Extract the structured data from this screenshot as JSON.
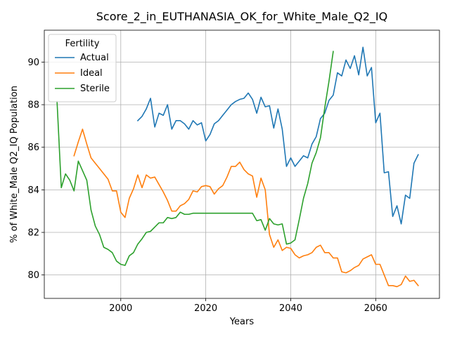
{
  "chart_data": {
    "type": "line",
    "title": "Score_2_in_EUTHANASIA_OK_for_White_Male_Q2_IQ",
    "xlabel": "Years",
    "ylabel": "% of White_Male Q2_IQ Population",
    "xlim": [
      1982,
      2075
    ],
    "ylim": [
      78.9,
      91.5
    ],
    "xticks": [
      2000,
      2020,
      2040,
      2060
    ],
    "yticks": [
      80,
      82,
      84,
      86,
      88,
      90
    ],
    "grid": true,
    "legend": {
      "title": "Fertility",
      "position": "top-left"
    },
    "series": [
      {
        "name": "Actual",
        "color": "#1f77b4",
        "points": [
          [
            2004,
            87.25
          ],
          [
            2005,
            87.45
          ],
          [
            2006,
            87.8
          ],
          [
            2007,
            88.3
          ],
          [
            2008,
            86.95
          ],
          [
            2009,
            87.6
          ],
          [
            2010,
            87.5
          ],
          [
            2011,
            88.0
          ],
          [
            2012,
            86.85
          ],
          [
            2013,
            87.25
          ],
          [
            2014,
            87.25
          ],
          [
            2015,
            87.1
          ],
          [
            2016,
            86.85
          ],
          [
            2017,
            87.25
          ],
          [
            2018,
            87.05
          ],
          [
            2019,
            87.15
          ],
          [
            2020,
            86.3
          ],
          [
            2021,
            86.6
          ],
          [
            2022,
            87.1
          ],
          [
            2023,
            87.25
          ],
          [
            2024,
            87.5
          ],
          [
            2025,
            87.75
          ],
          [
            2026,
            88.0
          ],
          [
            2027,
            88.15
          ],
          [
            2028,
            88.25
          ],
          [
            2029,
            88.3
          ],
          [
            2030,
            88.55
          ],
          [
            2031,
            88.25
          ],
          [
            2032,
            87.6
          ],
          [
            2033,
            88.35
          ],
          [
            2034,
            87.9
          ],
          [
            2035,
            87.95
          ],
          [
            2036,
            86.9
          ],
          [
            2037,
            87.8
          ],
          [
            2038,
            86.85
          ],
          [
            2039,
            85.1
          ],
          [
            2040,
            85.5
          ],
          [
            2041,
            85.1
          ],
          [
            2042,
            85.35
          ],
          [
            2043,
            85.6
          ],
          [
            2044,
            85.5
          ],
          [
            2045,
            86.15
          ],
          [
            2046,
            86.5
          ],
          [
            2047,
            87.35
          ],
          [
            2048,
            87.6
          ],
          [
            2049,
            88.2
          ],
          [
            2050,
            88.45
          ],
          [
            2051,
            89.5
          ],
          [
            2052,
            89.35
          ],
          [
            2053,
            90.1
          ],
          [
            2054,
            89.7
          ],
          [
            2055,
            90.3
          ],
          [
            2056,
            89.4
          ],
          [
            2057,
            90.7
          ],
          [
            2058,
            89.35
          ],
          [
            2059,
            89.75
          ],
          [
            2060,
            87.15
          ],
          [
            2061,
            87.6
          ],
          [
            2062,
            84.8
          ],
          [
            2063,
            84.85
          ],
          [
            2064,
            82.75
          ],
          [
            2065,
            83.25
          ],
          [
            2066,
            82.4
          ],
          [
            2067,
            83.75
          ],
          [
            2068,
            83.6
          ],
          [
            2069,
            85.25
          ],
          [
            2070,
            85.65
          ]
        ]
      },
      {
        "name": "Ideal",
        "color": "#ff7f0e",
        "points": [
          [
            1989,
            85.6
          ],
          [
            1990,
            86.25
          ],
          [
            1991,
            86.85
          ],
          [
            1992,
            86.15
          ],
          [
            1993,
            85.5
          ],
          [
            1994,
            85.25
          ],
          [
            1995,
            85.0
          ],
          [
            1996,
            84.75
          ],
          [
            1997,
            84.5
          ],
          [
            1998,
            83.95
          ],
          [
            1999,
            83.95
          ],
          [
            2000,
            82.95
          ],
          [
            2001,
            82.7
          ],
          [
            2002,
            83.6
          ],
          [
            2003,
            84.05
          ],
          [
            2004,
            84.7
          ],
          [
            2005,
            84.1
          ],
          [
            2006,
            84.7
          ],
          [
            2007,
            84.55
          ],
          [
            2008,
            84.6
          ],
          [
            2009,
            84.25
          ],
          [
            2010,
            83.9
          ],
          [
            2011,
            83.5
          ],
          [
            2012,
            83.0
          ],
          [
            2013,
            83.0
          ],
          [
            2014,
            83.25
          ],
          [
            2015,
            83.35
          ],
          [
            2016,
            83.55
          ],
          [
            2017,
            83.95
          ],
          [
            2018,
            83.9
          ],
          [
            2019,
            84.15
          ],
          [
            2020,
            84.2
          ],
          [
            2021,
            84.15
          ],
          [
            2022,
            83.8
          ],
          [
            2023,
            84.05
          ],
          [
            2024,
            84.2
          ],
          [
            2025,
            84.6
          ],
          [
            2026,
            85.1
          ],
          [
            2027,
            85.1
          ],
          [
            2028,
            85.3
          ],
          [
            2029,
            84.95
          ],
          [
            2030,
            84.75
          ],
          [
            2031,
            84.65
          ],
          [
            2032,
            83.65
          ],
          [
            2033,
            84.55
          ],
          [
            2034,
            84.0
          ],
          [
            2035,
            81.9
          ],
          [
            2036,
            81.3
          ],
          [
            2037,
            81.65
          ],
          [
            2038,
            81.15
          ],
          [
            2039,
            81.3
          ],
          [
            2040,
            81.25
          ],
          [
            2041,
            80.95
          ],
          [
            2042,
            80.8
          ],
          [
            2043,
            80.9
          ],
          [
            2044,
            80.95
          ],
          [
            2045,
            81.05
          ],
          [
            2046,
            81.3
          ],
          [
            2047,
            81.4
          ],
          [
            2048,
            81.05
          ],
          [
            2049,
            81.05
          ],
          [
            2050,
            80.8
          ],
          [
            2051,
            80.8
          ],
          [
            2052,
            80.15
          ],
          [
            2053,
            80.1
          ],
          [
            2054,
            80.2
          ],
          [
            2055,
            80.35
          ],
          [
            2056,
            80.45
          ],
          [
            2057,
            80.75
          ],
          [
            2058,
            80.85
          ],
          [
            2059,
            80.95
          ],
          [
            2060,
            80.5
          ],
          [
            2061,
            80.5
          ],
          [
            2062,
            80.0
          ],
          [
            2063,
            79.5
          ],
          [
            2064,
            79.5
          ],
          [
            2065,
            79.45
          ],
          [
            2066,
            79.55
          ],
          [
            2067,
            79.95
          ],
          [
            2068,
            79.7
          ],
          [
            2069,
            79.75
          ],
          [
            2070,
            79.5
          ]
        ]
      },
      {
        "name": "Sterile",
        "color": "#2ca02c",
        "points": [
          [
            1985,
            88.15
          ],
          [
            1986,
            84.1
          ],
          [
            1987,
            84.75
          ],
          [
            1988,
            84.45
          ],
          [
            1989,
            83.95
          ],
          [
            1990,
            85.35
          ],
          [
            1991,
            84.9
          ],
          [
            1992,
            84.45
          ],
          [
            1993,
            83.05
          ],
          [
            1994,
            82.3
          ],
          [
            1995,
            81.9
          ],
          [
            1996,
            81.3
          ],
          [
            1997,
            81.2
          ],
          [
            1998,
            81.05
          ],
          [
            1999,
            80.65
          ],
          [
            2000,
            80.5
          ],
          [
            2001,
            80.45
          ],
          [
            2002,
            80.9
          ],
          [
            2003,
            81.05
          ],
          [
            2004,
            81.45
          ],
          [
            2005,
            81.7
          ],
          [
            2006,
            82.0
          ],
          [
            2007,
            82.05
          ],
          [
            2008,
            82.25
          ],
          [
            2009,
            82.45
          ],
          [
            2010,
            82.45
          ],
          [
            2011,
            82.7
          ],
          [
            2012,
            82.65
          ],
          [
            2013,
            82.7
          ],
          [
            2014,
            82.95
          ],
          [
            2015,
            82.85
          ],
          [
            2016,
            82.85
          ],
          [
            2017,
            82.9
          ],
          [
            2018,
            82.9
          ],
          [
            2019,
            82.9
          ],
          [
            2020,
            82.9
          ],
          [
            2021,
            82.9
          ],
          [
            2022,
            82.9
          ],
          [
            2023,
            82.9
          ],
          [
            2024,
            82.9
          ],
          [
            2025,
            82.9
          ],
          [
            2026,
            82.9
          ],
          [
            2027,
            82.9
          ],
          [
            2028,
            82.9
          ],
          [
            2029,
            82.9
          ],
          [
            2030,
            82.9
          ],
          [
            2031,
            82.9
          ],
          [
            2032,
            82.55
          ],
          [
            2033,
            82.6
          ],
          [
            2034,
            82.1
          ],
          [
            2035,
            82.65
          ],
          [
            2036,
            82.4
          ],
          [
            2037,
            82.35
          ],
          [
            2038,
            82.4
          ],
          [
            2039,
            81.45
          ],
          [
            2040,
            81.5
          ],
          [
            2041,
            81.65
          ],
          [
            2042,
            82.6
          ],
          [
            2043,
            83.6
          ],
          [
            2044,
            84.3
          ],
          [
            2045,
            85.25
          ],
          [
            2046,
            85.75
          ],
          [
            2047,
            86.45
          ],
          [
            2048,
            87.85
          ],
          [
            2049,
            89.1
          ],
          [
            2050,
            90.5
          ]
        ]
      }
    ]
  }
}
